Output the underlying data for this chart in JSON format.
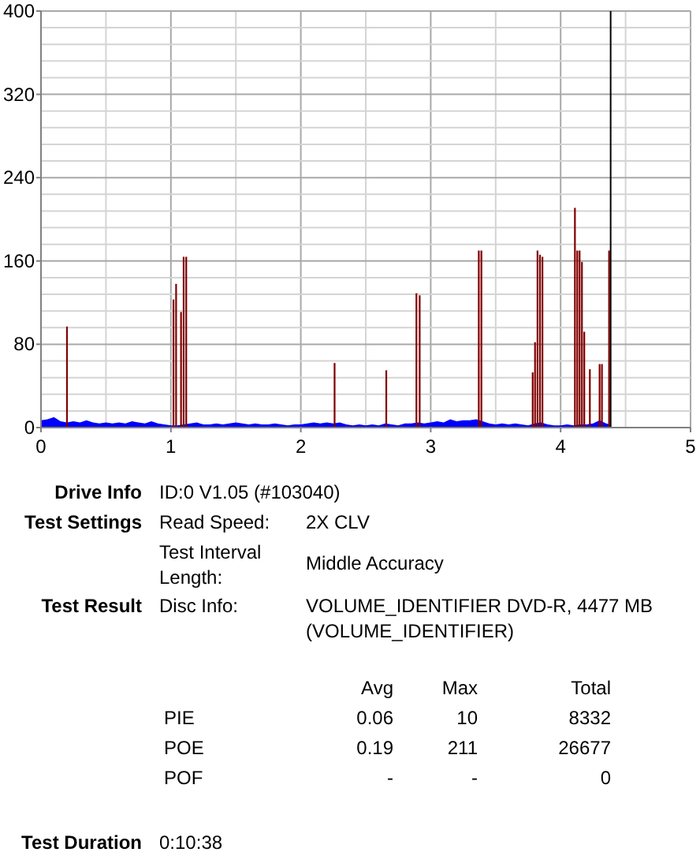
{
  "chart_data": {
    "type": "bar",
    "xlim": [
      0,
      5
    ],
    "xticks": [
      0,
      {
        "value": 0.5,
        "label": null
      },
      1,
      {
        "value": 1.5,
        "label": null
      },
      2,
      {
        "value": 2.5,
        "label": null
      },
      3,
      {
        "value": 3.5,
        "label": null
      },
      4,
      {
        "value": 4.5,
        "label": null
      },
      5
    ],
    "ylim": [
      0,
      400
    ],
    "yticks": [
      0,
      {
        "value": 16,
        "label": null
      },
      {
        "value": 32,
        "label": null
      },
      {
        "value": 48,
        "label": null
      },
      {
        "value": 64,
        "label": null
      },
      80,
      {
        "value": 96,
        "label": null
      },
      {
        "value": 112,
        "label": null
      },
      {
        "value": 128,
        "label": null
      },
      {
        "value": 144,
        "label": null
      },
      160,
      {
        "value": 176,
        "label": null
      },
      {
        "value": 192,
        "label": null
      },
      {
        "value": 208,
        "label": null
      },
      {
        "value": 224,
        "label": null
      },
      240,
      {
        "value": 256,
        "label": null
      },
      {
        "value": 272,
        "label": null
      },
      {
        "value": 288,
        "label": null
      },
      {
        "value": 304,
        "label": null
      },
      320,
      {
        "value": 336,
        "label": null
      },
      {
        "value": 352,
        "label": null
      },
      {
        "value": 368,
        "label": null
      },
      {
        "value": 384,
        "label": null
      },
      400
    ],
    "grid": true,
    "series": [
      {
        "type": "area",
        "color": "#0000ff",
        "x": [
          0,
          0.05,
          0.1,
          0.15,
          0.2,
          0.25,
          0.3,
          0.35,
          0.4,
          0.45,
          0.5,
          0.55,
          0.6,
          0.65,
          0.7,
          0.75,
          0.8,
          0.85,
          0.9,
          0.95,
          1,
          1.05,
          1.1,
          1.15,
          1.2,
          1.25,
          1.3,
          1.35,
          1.4,
          1.45,
          1.5,
          1.55,
          1.6,
          1.65,
          1.7,
          1.75,
          1.8,
          1.85,
          1.9,
          1.95,
          2,
          2.05,
          2.1,
          2.15,
          2.2,
          2.25,
          2.3,
          2.35,
          2.4,
          2.45,
          2.5,
          2.55,
          2.6,
          2.65,
          2.7,
          2.75,
          2.8,
          2.85,
          2.9,
          2.95,
          3,
          3.05,
          3.1,
          3.15,
          3.2,
          3.25,
          3.3,
          3.35,
          3.4,
          3.45,
          3.5,
          3.55,
          3.6,
          3.65,
          3.7,
          3.75,
          3.8,
          3.85,
          3.9,
          3.95,
          4,
          4.05,
          4.1,
          4.15,
          4.2,
          4.25,
          4.3,
          4.35,
          4.38
        ],
        "values": [
          7,
          8,
          10,
          6,
          5,
          6,
          5,
          7,
          5,
          4,
          5,
          4,
          5,
          4,
          6,
          5,
          4,
          6,
          4,
          3,
          2,
          2,
          3,
          4,
          5,
          3,
          3,
          4,
          3,
          4,
          5,
          4,
          3,
          4,
          3,
          3,
          4,
          3,
          2,
          3,
          3,
          4,
          5,
          4,
          5,
          4,
          5,
          3,
          2,
          3,
          2,
          3,
          2,
          4,
          3,
          2,
          4,
          4,
          5,
          4,
          5,
          6,
          5,
          8,
          6,
          7,
          7,
          8,
          6,
          4,
          3,
          4,
          3,
          4,
          3,
          2,
          4,
          5,
          3,
          2,
          2,
          3,
          2,
          3,
          3,
          4,
          7,
          4,
          3
        ]
      },
      {
        "color": "#800000",
        "x": [
          0.2,
          1.02,
          1.04,
          1.078,
          1.098,
          1.118,
          2.26,
          2.658,
          2.89,
          2.915,
          3.37,
          3.39,
          3.785,
          3.803,
          3.822,
          3.841,
          3.86,
          4.11,
          4.128,
          4.146,
          4.164,
          4.182,
          4.225,
          4.3,
          4.318,
          4.373
        ],
        "values": [
          97,
          123,
          138,
          111,
          164,
          164,
          62,
          55,
          129,
          127,
          170,
          170,
          53,
          82,
          170,
          166,
          164,
          211,
          170,
          170,
          159,
          92,
          56,
          61,
          61,
          170
        ]
      }
    ],
    "ref_lines": [
      {
        "axis": "x",
        "value": 4.385,
        "color": "#000000"
      }
    ],
    "annotations": [
      "Drive Info",
      "ID:0 V1.05 (#103040)",
      "Test Settings",
      "Read Speed:",
      "2X CLV",
      "Test Interval Length:",
      "Middle Accuracy",
      "Test Result",
      "Disc Info:",
      "VOLUME_IDENTIFIER DVD-R, 4477 MB (VOLUME_IDENTIFIER)",
      "Avg",
      "Max",
      "Total",
      "PIE",
      "0.06",
      "10",
      "8332",
      "POE",
      "0.19",
      "211",
      "26677",
      "POF",
      "-",
      "-",
      "0",
      "Test Duration",
      "0:10:38"
    ]
  }
}
